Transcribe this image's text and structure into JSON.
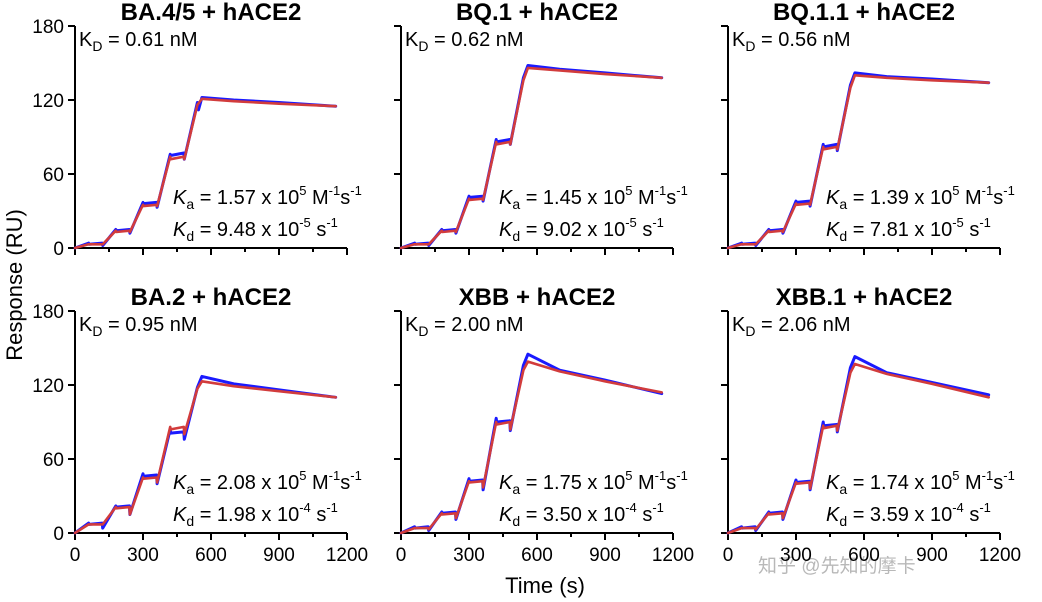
{
  "figure": {
    "ylabel": "Response (RU)",
    "xlabel": "Time (s)",
    "watermark": "知乎 @先知的摩卡"
  },
  "colors": {
    "data": "#1a1aff",
    "fit": "#d23c3c",
    "axis": "#000000"
  },
  "chart_data": [
    {
      "type": "line",
      "title": "BA.4/5 + hACE2",
      "kd_prefix": "K",
      "kd_sub": "D",
      "kd_value": "= 0.61 nM",
      "ka_prefix": "K",
      "ka_sub": "a",
      "ka_value": "= 1.57 x 10",
      "ka_exp": "5",
      "ka_unit1": " M",
      "ka_unit1_exp": "-1",
      "ka_unit2": "s",
      "ka_unit2_exp": "-1",
      "kdiss_prefix": "K",
      "kdiss_sub": "d",
      "kdiss_value": "= 9.48 x 10",
      "kdiss_exp": "-5",
      "kdiss_unit": " s",
      "kdiss_unit_exp": "-1",
      "xlim": [
        0,
        1200
      ],
      "ylim": [
        0,
        180
      ],
      "xticks": [
        "0",
        "300",
        "600",
        "900",
        "1200"
      ],
      "yticks": [
        "0",
        "60",
        "120",
        "180"
      ],
      "series": [
        {
          "role": "data",
          "x": [
            0,
            60,
            62,
            120,
            122,
            180,
            182,
            240,
            242,
            300,
            302,
            360,
            362,
            420,
            422,
            480,
            482,
            540,
            545,
            560,
            700,
            900,
            1150
          ],
          "y": [
            0,
            4,
            3,
            4,
            2,
            15,
            14,
            15,
            12,
            37,
            36,
            37,
            33,
            76,
            75,
            77,
            72,
            118,
            112,
            122,
            120,
            118,
            115
          ]
        },
        {
          "role": "fit",
          "x": [
            0,
            60,
            62,
            120,
            122,
            180,
            182,
            240,
            242,
            300,
            302,
            360,
            362,
            420,
            422,
            480,
            482,
            540,
            560,
            700,
            900,
            1150
          ],
          "y": [
            0,
            3,
            3,
            3,
            3,
            14,
            13,
            14,
            13,
            35,
            34,
            35,
            34,
            74,
            72,
            74,
            72,
            116,
            121,
            119,
            117,
            115
          ]
        }
      ]
    },
    {
      "type": "line",
      "title": "BQ.1 + hACE2",
      "kd_prefix": "K",
      "kd_sub": "D",
      "kd_value": "= 0.62 nM",
      "ka_prefix": "K",
      "ka_sub": "a",
      "ka_value": "= 1.45 x 10",
      "ka_exp": "5",
      "ka_unit1": " M",
      "ka_unit1_exp": "-1",
      "ka_unit2": "s",
      "ka_unit2_exp": "-1",
      "kdiss_prefix": "K",
      "kdiss_sub": "d",
      "kdiss_value": "= 9.02 x 10",
      "kdiss_exp": "-5",
      "kdiss_unit": " s",
      "kdiss_unit_exp": "-1",
      "xlim": [
        0,
        1200
      ],
      "ylim": [
        0,
        180
      ],
      "xticks": [
        "0",
        "300",
        "600",
        "900",
        "1200"
      ],
      "yticks": [
        "0",
        "60",
        "120",
        "180"
      ],
      "series": [
        {
          "role": "data",
          "x": [
            0,
            60,
            62,
            120,
            122,
            180,
            182,
            240,
            242,
            300,
            302,
            360,
            362,
            420,
            422,
            480,
            482,
            540,
            560,
            700,
            900,
            1150
          ],
          "y": [
            0,
            4,
            3,
            4,
            2,
            15,
            14,
            15,
            12,
            42,
            41,
            42,
            38,
            88,
            86,
            88,
            84,
            138,
            148,
            145,
            142,
            138
          ]
        },
        {
          "role": "fit",
          "x": [
            0,
            60,
            62,
            120,
            122,
            180,
            182,
            240,
            242,
            300,
            302,
            360,
            362,
            420,
            422,
            480,
            482,
            540,
            560,
            700,
            900,
            1150
          ],
          "y": [
            0,
            3,
            3,
            3,
            3,
            14,
            13,
            14,
            13,
            40,
            39,
            40,
            39,
            86,
            84,
            86,
            84,
            136,
            146,
            144,
            141,
            138
          ]
        }
      ]
    },
    {
      "type": "line",
      "title": "BQ.1.1 + hACE2",
      "kd_prefix": "K",
      "kd_sub": "D",
      "kd_value": "= 0.56 nM",
      "ka_prefix": "K",
      "ka_sub": "a",
      "ka_value": "= 1.39 x 10",
      "ka_exp": "5",
      "ka_unit1": " M",
      "ka_unit1_exp": "-1",
      "ka_unit2": "s",
      "ka_unit2_exp": "-1",
      "kdiss_prefix": "K",
      "kdiss_sub": "d",
      "kdiss_value": "= 7.81 x 10",
      "kdiss_exp": "-5",
      "kdiss_unit": " s",
      "kdiss_unit_exp": "-1",
      "xlim": [
        0,
        1200
      ],
      "ylim": [
        0,
        180
      ],
      "xticks": [
        "0",
        "300",
        "600",
        "900",
        "1200"
      ],
      "yticks": [
        "0",
        "60",
        "120",
        "180"
      ],
      "series": [
        {
          "role": "data",
          "x": [
            0,
            60,
            62,
            120,
            122,
            180,
            182,
            240,
            242,
            300,
            302,
            360,
            362,
            420,
            422,
            480,
            482,
            540,
            560,
            700,
            900,
            1150
          ],
          "y": [
            0,
            4,
            3,
            4,
            2,
            15,
            14,
            15,
            12,
            38,
            37,
            38,
            34,
            84,
            82,
            84,
            79,
            132,
            142,
            139,
            137,
            134
          ]
        },
        {
          "role": "fit",
          "x": [
            0,
            60,
            62,
            120,
            122,
            180,
            182,
            240,
            242,
            300,
            302,
            360,
            362,
            420,
            422,
            480,
            482,
            540,
            560,
            700,
            900,
            1150
          ],
          "y": [
            0,
            3,
            3,
            3,
            3,
            14,
            13,
            14,
            13,
            36,
            35,
            36,
            35,
            82,
            80,
            82,
            80,
            130,
            140,
            138,
            136,
            134
          ]
        }
      ]
    },
    {
      "type": "line",
      "title": "BA.2 + hACE2",
      "kd_prefix": "K",
      "kd_sub": "D",
      "kd_value": "= 0.95 nM",
      "ka_prefix": "K",
      "ka_sub": "a",
      "ka_value": "= 2.08 x 10",
      "ka_exp": "5",
      "ka_unit1": " M",
      "ka_unit1_exp": "-1",
      "ka_unit2": "s",
      "ka_unit2_exp": "-1",
      "kdiss_prefix": "K",
      "kdiss_sub": "d",
      "kdiss_value": "= 1.98 x 10",
      "kdiss_exp": "-4",
      "kdiss_unit": " s",
      "kdiss_unit_exp": "-1",
      "xlim": [
        0,
        1200
      ],
      "ylim": [
        0,
        180
      ],
      "xticks": [
        "0",
        "300",
        "600",
        "900",
        "1200"
      ],
      "yticks": [
        "0",
        "60",
        "120",
        "180"
      ],
      "series": [
        {
          "role": "data",
          "x": [
            0,
            60,
            62,
            120,
            122,
            180,
            182,
            240,
            242,
            300,
            302,
            360,
            362,
            420,
            422,
            480,
            482,
            540,
            560,
            700,
            900,
            1150
          ],
          "y": [
            0,
            8,
            7,
            8,
            4,
            22,
            21,
            22,
            15,
            48,
            46,
            47,
            40,
            84,
            81,
            82,
            76,
            118,
            127,
            121,
            116,
            110
          ]
        },
        {
          "role": "fit",
          "x": [
            0,
            60,
            62,
            120,
            122,
            180,
            182,
            240,
            242,
            300,
            302,
            360,
            362,
            420,
            422,
            480,
            482,
            540,
            560,
            700,
            900,
            1150
          ],
          "y": [
            0,
            7,
            7,
            7,
            7,
            21,
            20,
            21,
            15,
            45,
            44,
            45,
            41,
            86,
            84,
            86,
            80,
            117,
            123,
            119,
            115,
            110
          ]
        }
      ]
    },
    {
      "type": "line",
      "title": "XBB + hACE2",
      "kd_prefix": "K",
      "kd_sub": "D",
      "kd_value": "= 2.00 nM",
      "ka_prefix": "K",
      "ka_sub": "a",
      "ka_value": "= 1.75 x 10",
      "ka_exp": "5",
      "ka_unit1": " M",
      "ka_unit1_exp": "-1",
      "ka_unit2": "s",
      "ka_unit2_exp": "-1",
      "kdiss_prefix": "K",
      "kdiss_sub": "d",
      "kdiss_value": "= 3.50 x 10",
      "kdiss_exp": "-4",
      "kdiss_unit": " s",
      "kdiss_unit_exp": "-1",
      "xlim": [
        0,
        1200
      ],
      "ylim": [
        0,
        180
      ],
      "xticks": [
        "0",
        "300",
        "600",
        "900",
        "1200"
      ],
      "yticks": [
        "0",
        "60",
        "120",
        "180"
      ],
      "series": [
        {
          "role": "data",
          "x": [
            0,
            60,
            62,
            120,
            122,
            180,
            182,
            240,
            242,
            300,
            302,
            360,
            362,
            420,
            422,
            480,
            482,
            540,
            560,
            700,
            900,
            1150
          ],
          "y": [
            0,
            5,
            4,
            5,
            2,
            17,
            16,
            17,
            11,
            44,
            42,
            43,
            35,
            93,
            90,
            91,
            83,
            136,
            145,
            132,
            124,
            113
          ]
        },
        {
          "role": "fit",
          "x": [
            0,
            60,
            62,
            120,
            122,
            180,
            182,
            240,
            242,
            300,
            302,
            360,
            362,
            420,
            422,
            480,
            482,
            540,
            560,
            700,
            900,
            1150
          ],
          "y": [
            0,
            4,
            4,
            4,
            3,
            16,
            15,
            16,
            12,
            42,
            41,
            42,
            37,
            90,
            88,
            90,
            84,
            132,
            139,
            131,
            123,
            114
          ]
        }
      ]
    },
    {
      "type": "line",
      "title": "XBB.1 + hACE2",
      "kd_prefix": "K",
      "kd_sub": "D",
      "kd_value": "= 2.06 nM",
      "ka_prefix": "K",
      "ka_sub": "a",
      "ka_value": "= 1.74 x 10",
      "ka_exp": "5",
      "ka_unit1": " M",
      "ka_unit1_exp": "-1",
      "ka_unit2": "s",
      "ka_unit2_exp": "-1",
      "kdiss_prefix": "K",
      "kdiss_sub": "d",
      "kdiss_value": "= 3.59 x 10",
      "kdiss_exp": "-4",
      "kdiss_unit": " s",
      "kdiss_unit_exp": "-1",
      "xlim": [
        0,
        1200
      ],
      "ylim": [
        0,
        180
      ],
      "xticks": [
        "0",
        "300",
        "600",
        "900",
        "1200"
      ],
      "yticks": [
        "0",
        "60",
        "120",
        "180"
      ],
      "series": [
        {
          "role": "data",
          "x": [
            0,
            60,
            62,
            120,
            122,
            180,
            182,
            240,
            242,
            300,
            302,
            360,
            362,
            420,
            422,
            480,
            482,
            540,
            560,
            700,
            900,
            1150
          ],
          "y": [
            0,
            5,
            4,
            5,
            2,
            17,
            16,
            17,
            11,
            43,
            41,
            42,
            35,
            90,
            87,
            88,
            82,
            134,
            143,
            130,
            122,
            112
          ]
        },
        {
          "role": "fit",
          "x": [
            0,
            60,
            62,
            120,
            122,
            180,
            182,
            240,
            242,
            300,
            302,
            360,
            362,
            420,
            422,
            480,
            482,
            540,
            560,
            700,
            900,
            1150
          ],
          "y": [
            0,
            4,
            4,
            4,
            3,
            16,
            15,
            16,
            12,
            41,
            40,
            41,
            36,
            87,
            85,
            87,
            83,
            130,
            137,
            129,
            121,
            110
          ]
        }
      ]
    }
  ]
}
